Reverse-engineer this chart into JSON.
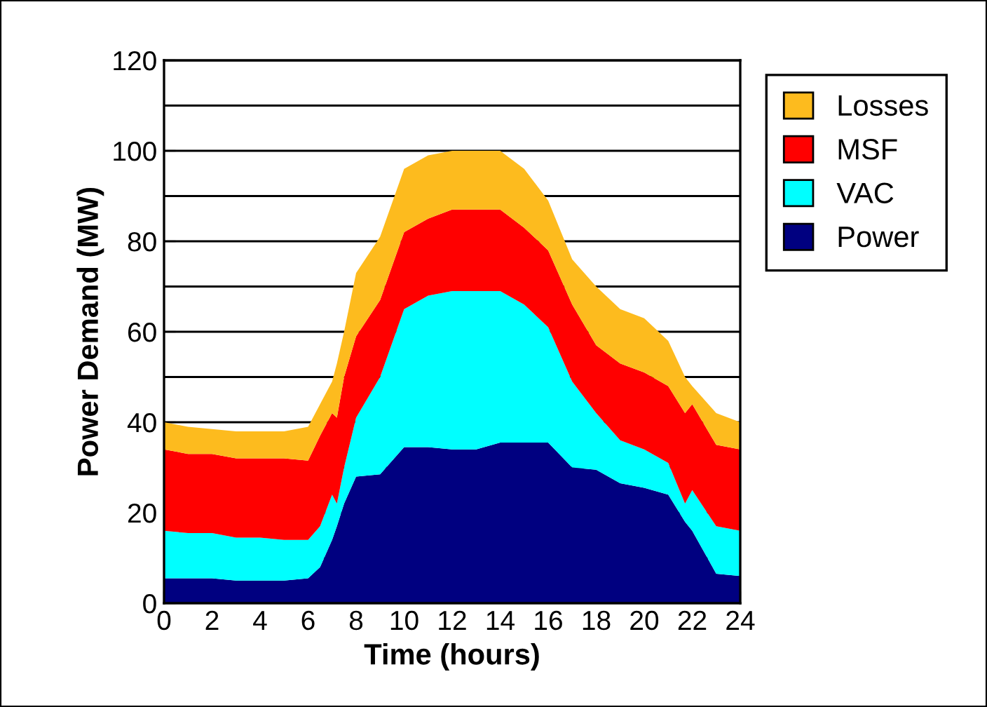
{
  "chart_data": {
    "type": "area",
    "stacked": true,
    "xlabel": "Time (hours)",
    "ylabel": "Power Demand (MW)",
    "x": [
      0,
      1,
      2,
      3,
      4,
      5,
      6,
      6.5,
      7,
      7.2,
      7.5,
      8,
      9,
      10,
      11,
      12,
      13,
      14,
      15,
      16,
      17,
      18,
      19,
      20,
      21,
      21.7,
      22,
      23,
      24
    ],
    "series": [
      {
        "name": "Power",
        "color": "#000080",
        "values": [
          5.5,
          5.5,
          5.5,
          5,
          5,
          5,
          5.5,
          8,
          14,
          17,
          22,
          28,
          28.5,
          34.5,
          34.5,
          34,
          34,
          35.5,
          35.5,
          35.5,
          30,
          29.5,
          26.5,
          25.5,
          24,
          18,
          16,
          6.5,
          6
        ]
      },
      {
        "name": "VAC",
        "color": "#00ffff",
        "values": [
          10.5,
          10,
          10,
          9.5,
          9.5,
          9,
          8.5,
          9,
          10,
          5,
          8,
          13,
          21.5,
          30.5,
          33.5,
          35,
          35,
          33.5,
          30.5,
          25.5,
          19,
          12.5,
          9.5,
          8.5,
          7,
          4,
          9,
          10.5,
          10
        ]
      },
      {
        "name": "MSF",
        "color": "#ff0000",
        "values": [
          18,
          17.5,
          17.5,
          17.5,
          17.5,
          18,
          17.5,
          20,
          18,
          19,
          20,
          18,
          17,
          17,
          17,
          18,
          18,
          18,
          17,
          17,
          17,
          15,
          17,
          17,
          17,
          20,
          19,
          18,
          18
        ]
      },
      {
        "name": "Losses",
        "color": "#fdbb1e",
        "values": [
          6,
          6,
          5.5,
          6,
          6,
          6,
          7.5,
          7,
          7,
          12,
          10,
          14,
          14,
          14,
          14,
          13,
          13,
          13,
          13,
          11,
          10,
          13,
          12,
          12,
          10,
          8,
          4,
          7,
          6
        ]
      }
    ],
    "xlim": [
      0,
      24
    ],
    "xticks": [
      0,
      2,
      4,
      6,
      8,
      10,
      12,
      14,
      16,
      18,
      20,
      22,
      24
    ],
    "ylim": [
      0,
      120
    ],
    "yticks": [
      0,
      {
        "value": 10,
        "label": null
      },
      20,
      {
        "value": 30,
        "label": null
      },
      40,
      {
        "value": 50,
        "label": null
      },
      60,
      {
        "value": 70,
        "label": null
      },
      80,
      {
        "value": 90,
        "label": null
      },
      100,
      {
        "value": 110,
        "label": null
      },
      120
    ],
    "grid": "y",
    "legend": "top right"
  }
}
